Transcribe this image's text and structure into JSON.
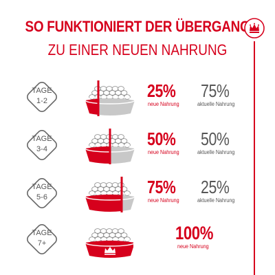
{
  "header": {
    "title_line1": "SO FUNKTIONIERT DER ÜBERGANG",
    "title_line2": "ZU EINER NEUEN NAHRUNG"
  },
  "brand": {
    "logo_icon": "crown-icon",
    "color": "#d6001c"
  },
  "stages": [
    {
      "label": "TAGE",
      "days": "1-2",
      "new_pct": "25%",
      "new_label": "neue Nahrung",
      "current_pct": "75%",
      "current_label": "aktuelle Nahrung",
      "new_share": 0.25
    },
    {
      "label": "TAGE",
      "days": "3-4",
      "new_pct": "50%",
      "new_label": "neue Nahrung",
      "current_pct": "50%",
      "current_label": "aktuelle Nahrung",
      "new_share": 0.5
    },
    {
      "label": "TAGE",
      "days": "5-6",
      "new_pct": "75%",
      "new_label": "neue Nahrung",
      "current_pct": "25%",
      "current_label": "aktuelle Nahrung",
      "new_share": 0.75
    },
    {
      "label": "TAGE",
      "days": "7+",
      "new_pct": "100%",
      "new_label": "neue Nahrung",
      "new_share": 1.0
    }
  ],
  "colors": {
    "accent": "#d6001c",
    "gray": "#555555",
    "bowl_gray": "#c8c8c8"
  }
}
